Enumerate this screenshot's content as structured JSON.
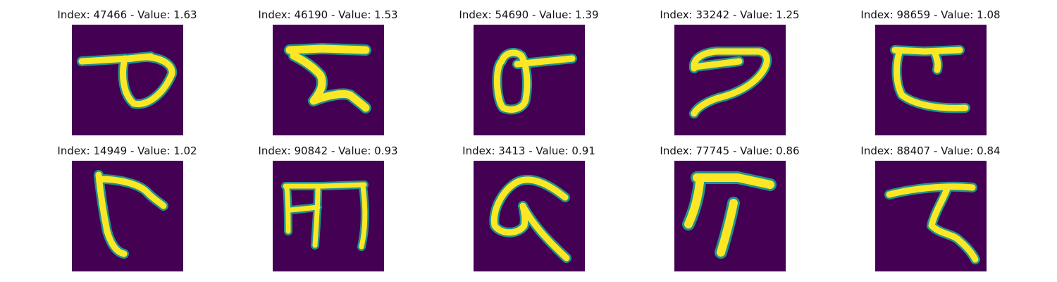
{
  "colors": {
    "background": "#440154",
    "mid": "#21918c",
    "high": "#fde725"
  },
  "panels": [
    {
      "index": "47466",
      "value": "1.63",
      "title": "Index: 47466 - Value: 1.63"
    },
    {
      "index": "46190",
      "value": "1.53",
      "title": "Index: 46190 - Value: 1.53"
    },
    {
      "index": "54690",
      "value": "1.39",
      "title": "Index: 54690 - Value: 1.39"
    },
    {
      "index": "33242",
      "value": "1.25",
      "title": "Index: 33242 - Value: 1.25"
    },
    {
      "index": "98659",
      "value": "1.08",
      "title": "Index: 98659 - Value: 1.08"
    },
    {
      "index": "14949",
      "value": "1.02",
      "title": "Index: 14949 - Value: 1.02"
    },
    {
      "index": "90842",
      "value": "0.93",
      "title": "Index: 90842 - Value: 0.93"
    },
    {
      "index": "3413",
      "value": "0.91",
      "title": "Index: 3413 - Value: 0.91"
    },
    {
      "index": "77745",
      "value": "0.86",
      "title": "Index: 77745 - Value: 0.86"
    },
    {
      "index": "88407",
      "value": "0.84",
      "title": "Index: 88407 - Value: 0.84"
    }
  ]
}
